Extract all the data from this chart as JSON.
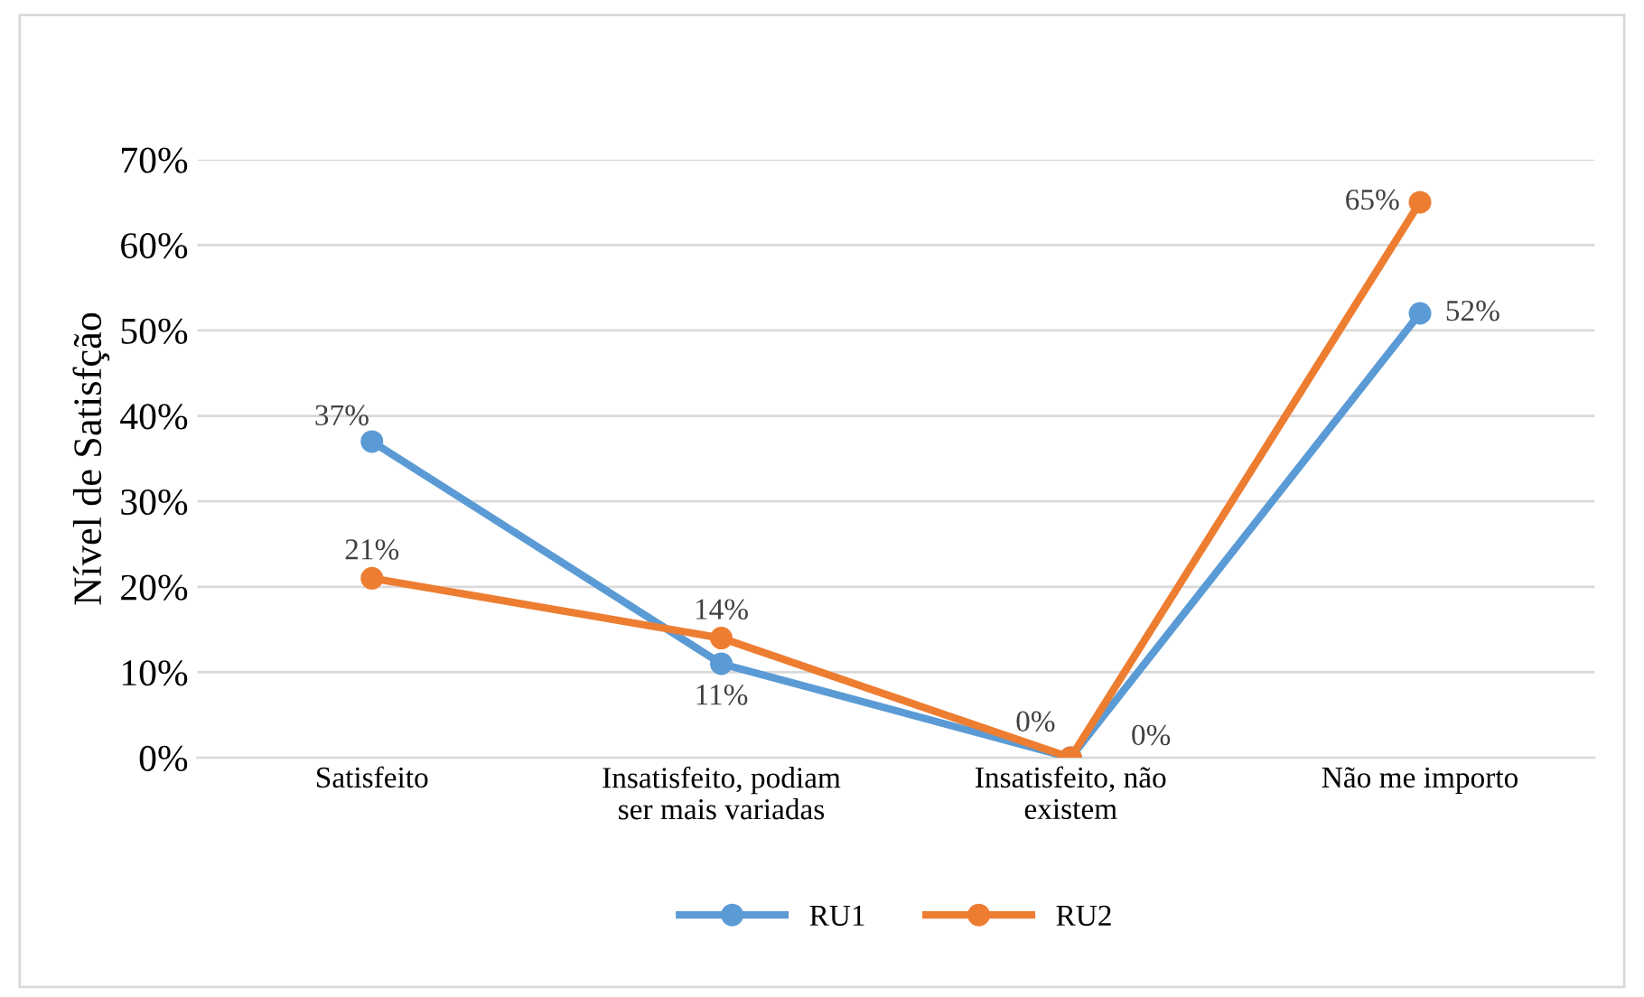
{
  "chart_data": {
    "type": "line",
    "ylabel": "Nível de Satisfção",
    "categories": [
      "Satisfeito",
      "Insatisfeito, podiam\nser mais variadas",
      "Insatisfeito, não\nexistem",
      "Não me importo"
    ],
    "series": [
      {
        "name": "RU1",
        "color": "#5b9bd5",
        "values": [
          37,
          11,
          0,
          52
        ],
        "value_labels": [
          "37%",
          "11%",
          "0%",
          "52%"
        ]
      },
      {
        "name": "RU2",
        "color": "#ed7d31",
        "values": [
          21,
          14,
          0,
          65
        ],
        "value_labels": [
          "21%",
          "14%",
          "0%",
          "65%"
        ]
      }
    ],
    "ylim": [
      0,
      70
    ],
    "yticks": [
      {
        "value": 0,
        "label": "0%"
      },
      {
        "value": 10,
        "label": "10%"
      },
      {
        "value": 20,
        "label": "20%"
      },
      {
        "value": 30,
        "label": "30%"
      },
      {
        "value": 40,
        "label": "40%"
      },
      {
        "value": 50,
        "label": "50%"
      },
      {
        "value": 60,
        "label": "60%"
      },
      {
        "value": 70,
        "label": "70%"
      }
    ],
    "grid": "y",
    "legend": "bottom",
    "marker": "circle",
    "line_style": "solid"
  }
}
